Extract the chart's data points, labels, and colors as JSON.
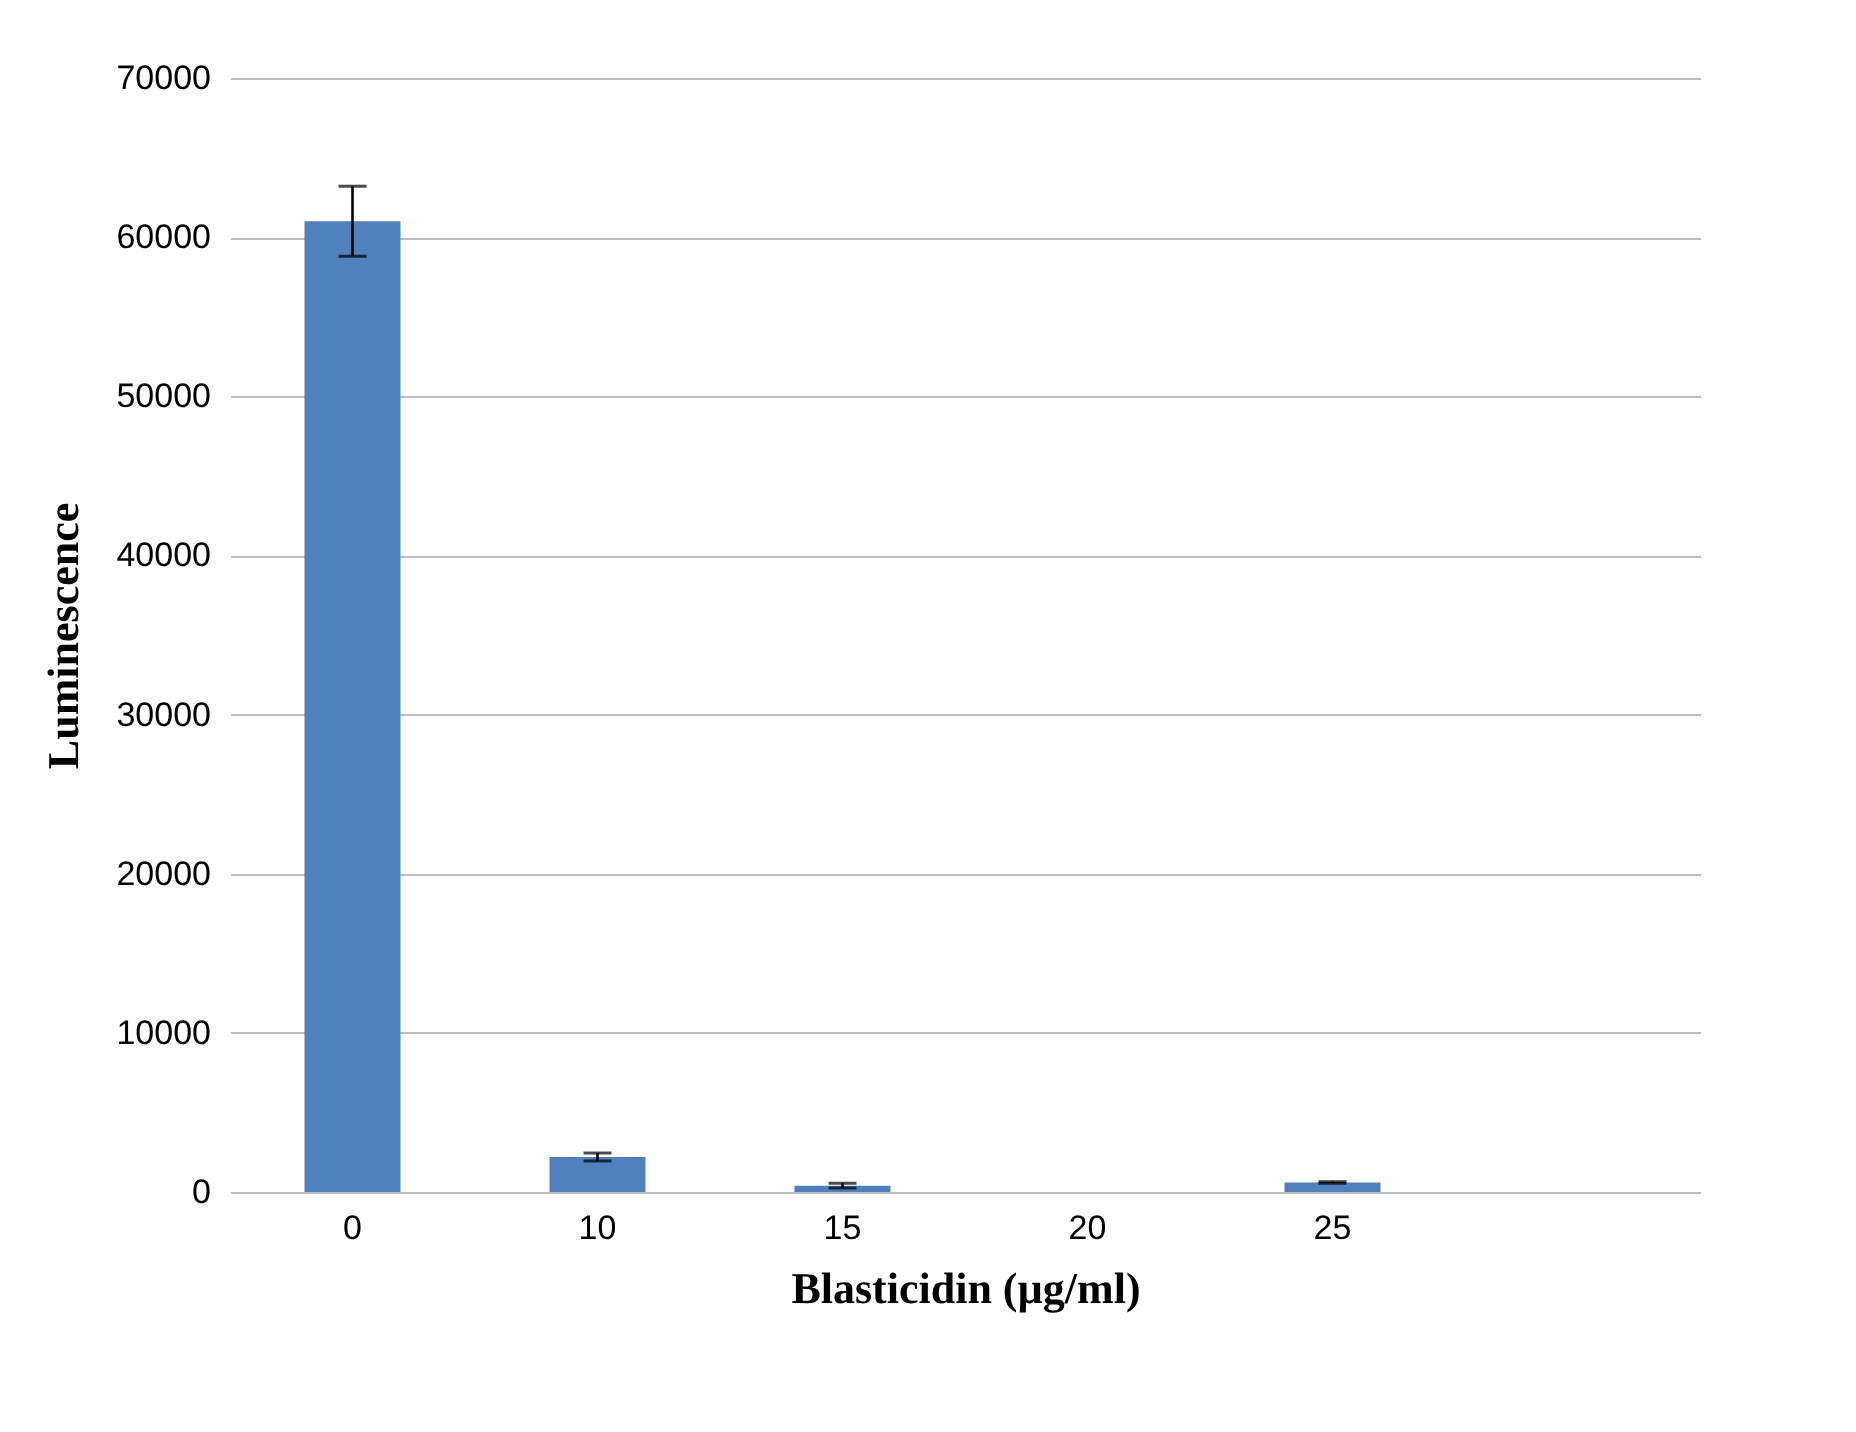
{
  "chart_data": {
    "type": "bar",
    "xlabel": "Blasticidin (µg/ml)",
    "ylabel": "Luminescence",
    "categories": [
      "0",
      "10",
      "15",
      "20",
      "25",
      null
    ],
    "values": [
      61000,
      2200,
      400,
      null,
      600,
      null
    ],
    "errors": [
      2200,
      250,
      150,
      null,
      50,
      null
    ],
    "color": "#4f81bd",
    "ylim": [
      0,
      70000
    ],
    "yticks": [
      0,
      10000,
      20000,
      30000,
      40000,
      50000,
      60000,
      70000
    ],
    "grid": "y"
  }
}
